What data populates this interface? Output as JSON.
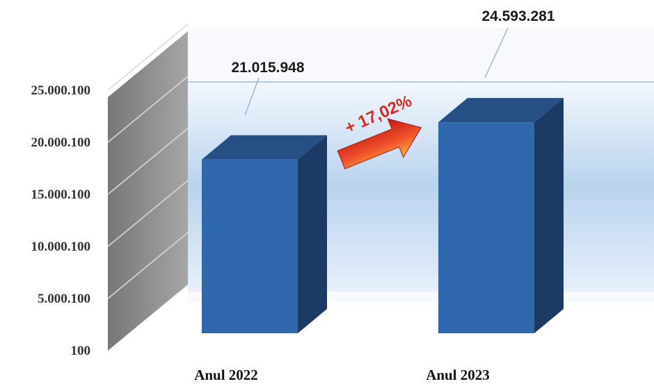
{
  "chart_data": {
    "type": "bar",
    "categories": [
      "Anul 2022",
      "Anul 2023"
    ],
    "values": [
      21015948,
      24593281
    ],
    "value_labels": [
      "21.015.948",
      "24.593.281"
    ],
    "ytick_values": [
      100,
      5000100,
      10000100,
      15000100,
      20000100,
      25000100
    ],
    "ytick_labels": [
      "100",
      "5.000.100",
      "10.000.100",
      "15.000.100",
      "20.000.100",
      "25.000.100"
    ],
    "ylim": [
      100,
      25000100
    ],
    "grid": true,
    "style": "3d-column",
    "annotation": {
      "text": "+ 17,02%",
      "arrow": "right"
    },
    "colors": {
      "bar_front": "#2f68ad",
      "bar_top": "#254f85",
      "bar_side": "#1c3a66",
      "arrow": "#e8401d",
      "annotation_text": "#d42a2a",
      "wall": "#8a8a8a",
      "back_band": "#b9d3ee"
    }
  }
}
